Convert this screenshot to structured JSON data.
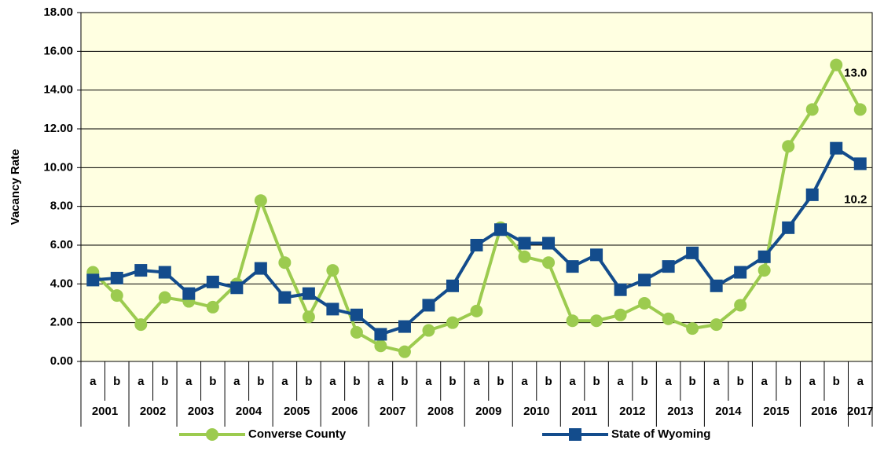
{
  "chart_data": {
    "type": "line",
    "y_label": "Vacancy Rate",
    "categories": [
      "a",
      "b",
      "a",
      "b",
      "a",
      "b",
      "a",
      "b",
      "a",
      "b",
      "a",
      "b",
      "a",
      "b",
      "a",
      "b",
      "a",
      "b",
      "a",
      "b",
      "a",
      "b",
      "a",
      "b",
      "a",
      "b",
      "a",
      "b",
      "a",
      "b",
      "a",
      "b",
      "a"
    ],
    "years": [
      "2001",
      "2002",
      "2003",
      "2004",
      "2005",
      "2006",
      "2007",
      "2008",
      "2009",
      "2010",
      "2011",
      "2012",
      "2013",
      "2014",
      "2015",
      "2016",
      "2017"
    ],
    "series": [
      {
        "name": "Converse County",
        "color": "#9ccb4f",
        "marker": "circle",
        "values": [
          4.6,
          3.4,
          1.9,
          3.3,
          3.1,
          2.8,
          4.0,
          8.3,
          5.1,
          2.3,
          4.7,
          1.5,
          0.8,
          0.5,
          1.6,
          2.0,
          2.6,
          6.9,
          5.4,
          5.1,
          2.1,
          2.1,
          2.4,
          3.0,
          2.2,
          1.7,
          1.9,
          2.9,
          4.7,
          11.1,
          13.0,
          15.3,
          13.0
        ],
        "value_labels": [
          null,
          null,
          null,
          null,
          null,
          null,
          null,
          null,
          null,
          null,
          null,
          null,
          null,
          null,
          null,
          null,
          null,
          null,
          null,
          null,
          null,
          null,
          null,
          null,
          null,
          null,
          null,
          null,
          null,
          null,
          null,
          null,
          "13.0"
        ]
      },
      {
        "name": "State of Wyoming",
        "color": "#134c8c",
        "marker": "square",
        "values": [
          4.2,
          4.3,
          4.7,
          4.6,
          3.5,
          4.1,
          3.8,
          4.8,
          3.3,
          3.5,
          2.7,
          2.4,
          1.4,
          1.8,
          2.9,
          3.9,
          6.0,
          6.8,
          6.1,
          6.1,
          4.9,
          5.5,
          3.7,
          4.2,
          4.9,
          5.6,
          3.9,
          4.6,
          5.4,
          6.9,
          8.6,
          11.0,
          10.2
        ],
        "value_labels": [
          null,
          null,
          null,
          null,
          null,
          null,
          null,
          null,
          null,
          null,
          null,
          null,
          null,
          null,
          null,
          null,
          null,
          null,
          null,
          null,
          null,
          null,
          null,
          null,
          null,
          null,
          null,
          null,
          null,
          null,
          null,
          null,
          "10.2"
        ]
      }
    ],
    "ylim": [
      0,
      18
    ],
    "yticks": [
      {
        "value": 0,
        "label": "0.00"
      },
      {
        "value": 2,
        "label": "2.00"
      },
      {
        "value": 4,
        "label": "4.00"
      },
      {
        "value": 6,
        "label": "6.00"
      },
      {
        "value": 8,
        "label": "8.00"
      },
      {
        "value": 10,
        "label": "10.00"
      },
      {
        "value": 12,
        "label": "12.00"
      },
      {
        "value": 14,
        "label": "14.00"
      },
      {
        "value": 16,
        "label": "16.00"
      },
      {
        "value": 18,
        "label": "18.00"
      }
    ],
    "grid": true,
    "legend": "bottom"
  }
}
